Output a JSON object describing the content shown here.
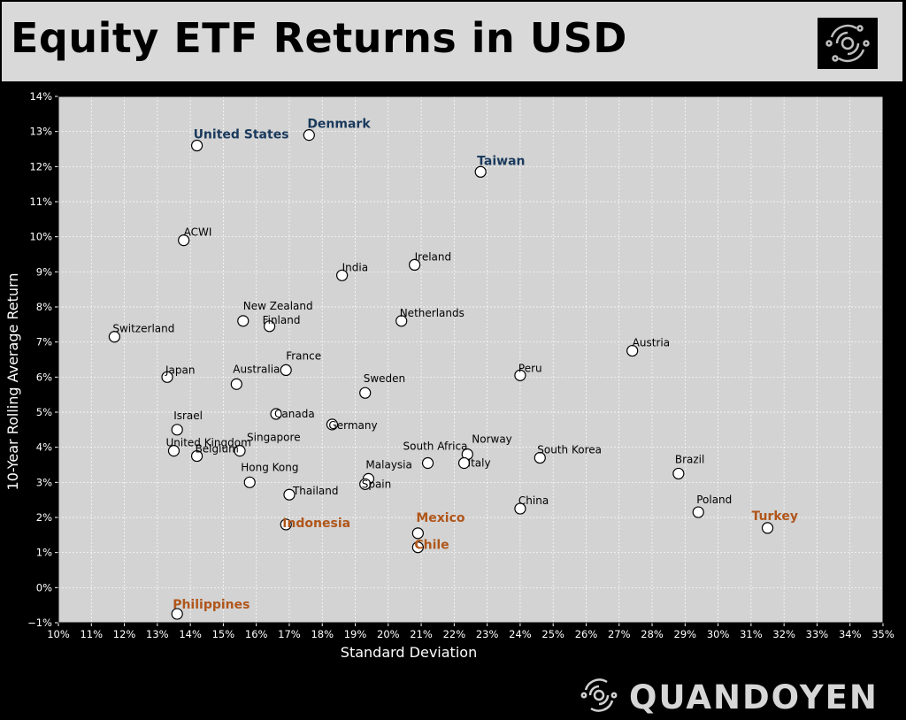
{
  "header": {
    "title": "Equity ETF Returns in USD",
    "logo_icon": "quandoyen-logo-icon"
  },
  "brand": {
    "name": "QUANDOYEN",
    "icon": "quandoyen-logo-icon"
  },
  "colors": {
    "background": "#000000",
    "title_bar": "#d9d9d9",
    "plot_area": "#d3d3d3",
    "highlight_blue": "#1a3a5c",
    "highlight_orange": "#b0561a",
    "normal_label": "#000000"
  },
  "chart_data": {
    "type": "scatter",
    "title": "",
    "xlabel": "Standard Deviation",
    "ylabel": "10-Year Rolling Average Return",
    "xlim": [
      10,
      35
    ],
    "ylim": [
      -1,
      14
    ],
    "x_unit": "%",
    "y_unit": "%",
    "grid": true,
    "x_ticks": [
      "10%",
      "11%",
      "12%",
      "13%",
      "14%",
      "15%",
      "16%",
      "17%",
      "18%",
      "19%",
      "20%",
      "21%",
      "22%",
      "23%",
      "24%",
      "25%",
      "26%",
      "27%",
      "28%",
      "29%",
      "30%",
      "31%",
      "32%",
      "33%",
      "34%",
      "35%"
    ],
    "y_ticks": [
      "−1%",
      "0%",
      "1%",
      "2%",
      "3%",
      "4%",
      "5%",
      "6%",
      "7%",
      "8%",
      "9%",
      "10%",
      "11%",
      "12%",
      "13%",
      "14%"
    ],
    "points": [
      {
        "label": "United States",
        "x": 14.2,
        "y": 12.6,
        "highlight": "blue"
      },
      {
        "label": "Denmark",
        "x": 17.6,
        "y": 12.9,
        "highlight": "blue"
      },
      {
        "label": "Taiwan",
        "x": 22.8,
        "y": 11.85,
        "highlight": "blue"
      },
      {
        "label": "ACWI",
        "x": 13.8,
        "y": 9.9
      },
      {
        "label": "Ireland",
        "x": 20.8,
        "y": 9.2
      },
      {
        "label": "India",
        "x": 18.6,
        "y": 8.9
      },
      {
        "label": "New Zealand",
        "x": 15.6,
        "y": 7.6
      },
      {
        "label": "Finland",
        "x": 16.4,
        "y": 7.45
      },
      {
        "label": "Netherlands",
        "x": 20.4,
        "y": 7.6
      },
      {
        "label": "Switzerland",
        "x": 11.7,
        "y": 7.15
      },
      {
        "label": "Austria",
        "x": 27.4,
        "y": 6.75
      },
      {
        "label": "France",
        "x": 16.9,
        "y": 6.2
      },
      {
        "label": "Japan",
        "x": 13.3,
        "y": 6.0
      },
      {
        "label": "Australia",
        "x": 15.4,
        "y": 5.8
      },
      {
        "label": "Peru",
        "x": 24.0,
        "y": 6.05
      },
      {
        "label": "Sweden",
        "x": 19.3,
        "y": 5.55
      },
      {
        "label": "Canada",
        "x": 16.6,
        "y": 4.95
      },
      {
        "label": "Germany",
        "x": 18.3,
        "y": 4.65
      },
      {
        "label": "Israel",
        "x": 13.6,
        "y": 4.5
      },
      {
        "label": "United Kingdom",
        "x": 13.5,
        "y": 3.9
      },
      {
        "label": "Singapore",
        "x": 15.5,
        "y": 3.9
      },
      {
        "label": "Belgium",
        "x": 14.2,
        "y": 3.75
      },
      {
        "label": "South Africa",
        "x": 21.2,
        "y": 3.55
      },
      {
        "label": "Norway",
        "x": 22.4,
        "y": 3.8
      },
      {
        "label": "Italy",
        "x": 22.3,
        "y": 3.55
      },
      {
        "label": "South Korea",
        "x": 24.6,
        "y": 3.7
      },
      {
        "label": "Brazil",
        "x": 28.8,
        "y": 3.25
      },
      {
        "label": "Hong Kong",
        "x": 15.8,
        "y": 3.0
      },
      {
        "label": "Malaysia",
        "x": 19.4,
        "y": 3.1
      },
      {
        "label": "Spain",
        "x": 19.3,
        "y": 2.95
      },
      {
        "label": "Thailand",
        "x": 17.0,
        "y": 2.65
      },
      {
        "label": "China",
        "x": 24.0,
        "y": 2.25
      },
      {
        "label": "Poland",
        "x": 29.4,
        "y": 2.15
      },
      {
        "label": "Indonesia",
        "x": 16.9,
        "y": 1.8,
        "highlight": "orange"
      },
      {
        "label": "Mexico",
        "x": 20.9,
        "y": 1.55,
        "highlight": "orange"
      },
      {
        "label": "Turkey",
        "x": 31.5,
        "y": 1.7,
        "highlight": "orange"
      },
      {
        "label": "Chile",
        "x": 20.9,
        "y": 1.15,
        "highlight": "orange"
      },
      {
        "label": "Philippines",
        "x": 13.6,
        "y": -0.75,
        "highlight": "orange"
      }
    ]
  }
}
